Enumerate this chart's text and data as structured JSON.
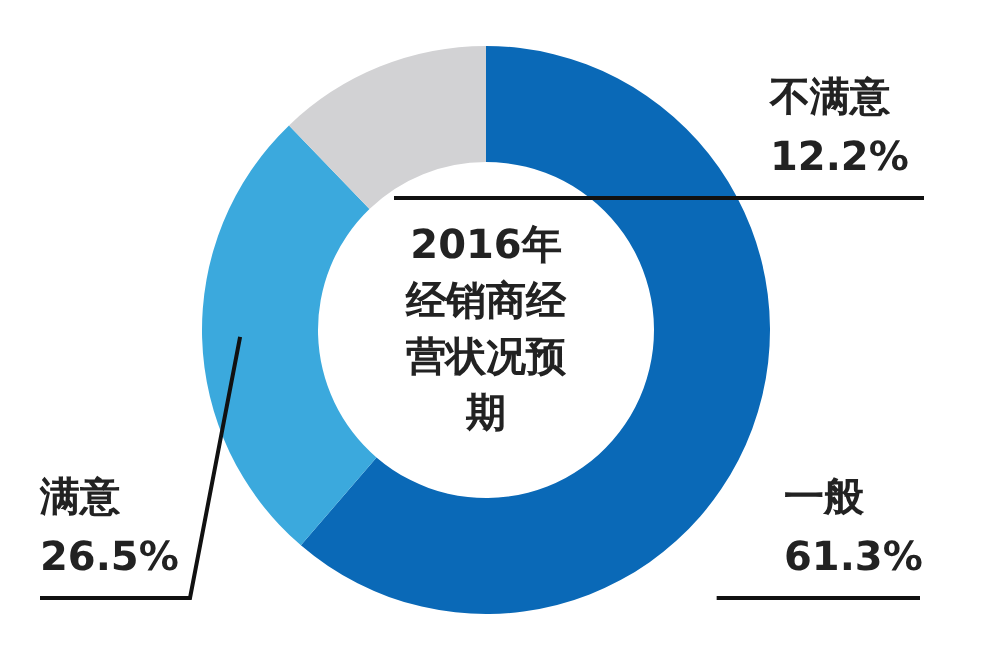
{
  "chart_data": {
    "type": "donut",
    "title": "2016年经销商经营状况预期",
    "categories": [
      "一般",
      "满意",
      "不满意"
    ],
    "values": [
      61.3,
      26.5,
      12.2
    ],
    "value_labels": [
      "61.3%",
      "26.5%",
      "12.2%"
    ],
    "colors": [
      "#0a69b7",
      "#3ba9dd",
      "#d2d2d4"
    ]
  }
}
